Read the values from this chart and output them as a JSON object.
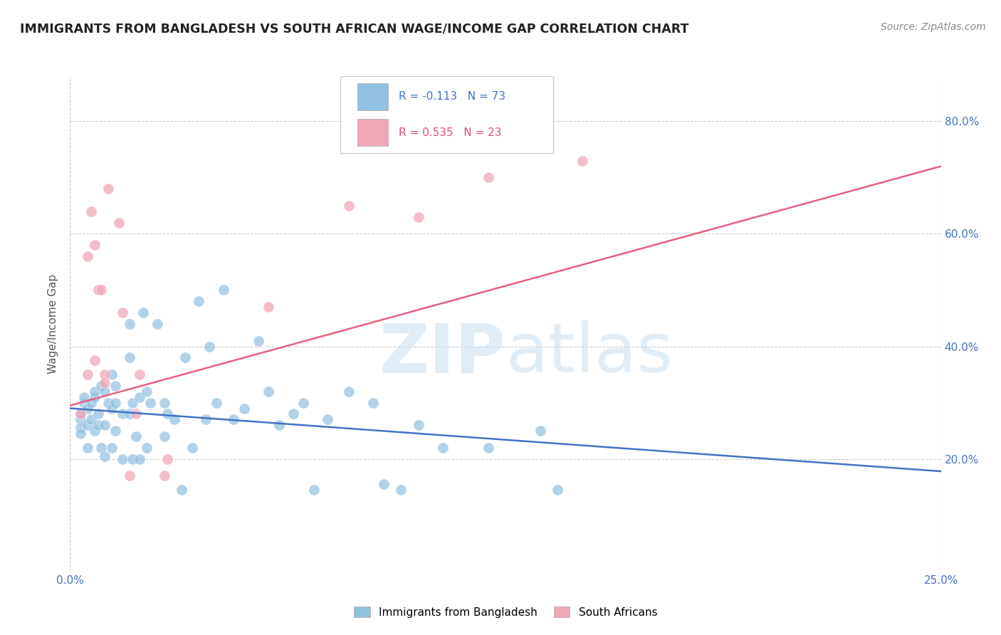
{
  "title": "IMMIGRANTS FROM BANGLADESH VS SOUTH AFRICAN WAGE/INCOME GAP CORRELATION CHART",
  "source": "Source: ZipAtlas.com",
  "ylabel": "Wage/Income Gap",
  "xlim": [
    0.0,
    0.25
  ],
  "ylim": [
    0.0,
    0.88
  ],
  "xtick_labels": [
    "0.0%",
    "25.0%"
  ],
  "xtick_vals": [
    0.0,
    0.25
  ],
  "ytick_vals": [
    0.2,
    0.4,
    0.6,
    0.8
  ],
  "ytick_labels": [
    "20.0%",
    "40.0%",
    "60.0%",
    "80.0%"
  ],
  "legend_label1": "Immigrants from Bangladesh",
  "legend_label2": "South Africans",
  "R1": -0.113,
  "N1": 73,
  "R2": 0.535,
  "N2": 23,
  "color_blue": "#92c0e0",
  "color_pink": "#f0a8b8",
  "color_blue_line": "#4472c4",
  "color_pink_line": "#e86080",
  "color_blue_text": "#4472c4",
  "color_pink_text": "#e05070",
  "background": "#ffffff",
  "grid_color": "#cccccc",
  "scatter_blue": [
    [
      0.003,
      0.27
    ],
    [
      0.003,
      0.255
    ],
    [
      0.003,
      0.28
    ],
    [
      0.003,
      0.245
    ],
    [
      0.004,
      0.3
    ],
    [
      0.004,
      0.31
    ],
    [
      0.005,
      0.26
    ],
    [
      0.005,
      0.29
    ],
    [
      0.005,
      0.22
    ],
    [
      0.006,
      0.3
    ],
    [
      0.006,
      0.27
    ],
    [
      0.007,
      0.31
    ],
    [
      0.007,
      0.32
    ],
    [
      0.007,
      0.25
    ],
    [
      0.008,
      0.26
    ],
    [
      0.008,
      0.28
    ],
    [
      0.009,
      0.33
    ],
    [
      0.009,
      0.22
    ],
    [
      0.01,
      0.205
    ],
    [
      0.01,
      0.32
    ],
    [
      0.01,
      0.26
    ],
    [
      0.011,
      0.3
    ],
    [
      0.012,
      0.35
    ],
    [
      0.012,
      0.29
    ],
    [
      0.012,
      0.22
    ],
    [
      0.013,
      0.3
    ],
    [
      0.013,
      0.33
    ],
    [
      0.013,
      0.25
    ],
    [
      0.015,
      0.28
    ],
    [
      0.015,
      0.2
    ],
    [
      0.017,
      0.44
    ],
    [
      0.017,
      0.38
    ],
    [
      0.017,
      0.28
    ],
    [
      0.018,
      0.3
    ],
    [
      0.018,
      0.2
    ],
    [
      0.019,
      0.24
    ],
    [
      0.02,
      0.31
    ],
    [
      0.02,
      0.2
    ],
    [
      0.021,
      0.46
    ],
    [
      0.022,
      0.32
    ],
    [
      0.022,
      0.22
    ],
    [
      0.023,
      0.3
    ],
    [
      0.025,
      0.44
    ],
    [
      0.027,
      0.3
    ],
    [
      0.027,
      0.24
    ],
    [
      0.028,
      0.28
    ],
    [
      0.03,
      0.27
    ],
    [
      0.032,
      0.145
    ],
    [
      0.033,
      0.38
    ],
    [
      0.035,
      0.22
    ],
    [
      0.037,
      0.48
    ],
    [
      0.039,
      0.27
    ],
    [
      0.04,
      0.4
    ],
    [
      0.042,
      0.3
    ],
    [
      0.044,
      0.5
    ],
    [
      0.047,
      0.27
    ],
    [
      0.05,
      0.29
    ],
    [
      0.054,
      0.41
    ],
    [
      0.057,
      0.32
    ],
    [
      0.06,
      0.26
    ],
    [
      0.064,
      0.28
    ],
    [
      0.067,
      0.3
    ],
    [
      0.07,
      0.145
    ],
    [
      0.074,
      0.27
    ],
    [
      0.08,
      0.32
    ],
    [
      0.087,
      0.3
    ],
    [
      0.09,
      0.155
    ],
    [
      0.095,
      0.145
    ],
    [
      0.1,
      0.26
    ],
    [
      0.107,
      0.22
    ],
    [
      0.12,
      0.22
    ],
    [
      0.135,
      0.25
    ],
    [
      0.14,
      0.145
    ]
  ],
  "scatter_pink": [
    [
      0.003,
      0.28
    ],
    [
      0.005,
      0.35
    ],
    [
      0.005,
      0.56
    ],
    [
      0.006,
      0.64
    ],
    [
      0.007,
      0.58
    ],
    [
      0.007,
      0.375
    ],
    [
      0.008,
      0.5
    ],
    [
      0.009,
      0.5
    ],
    [
      0.01,
      0.35
    ],
    [
      0.01,
      0.335
    ],
    [
      0.011,
      0.68
    ],
    [
      0.014,
      0.62
    ],
    [
      0.015,
      0.46
    ],
    [
      0.017,
      0.17
    ],
    [
      0.019,
      0.28
    ],
    [
      0.02,
      0.35
    ],
    [
      0.027,
      0.17
    ],
    [
      0.028,
      0.2
    ],
    [
      0.057,
      0.47
    ],
    [
      0.08,
      0.65
    ],
    [
      0.1,
      0.63
    ],
    [
      0.12,
      0.7
    ],
    [
      0.147,
      0.73
    ]
  ],
  "trendline_blue": [
    0.0,
    0.25,
    0.29,
    0.178
  ],
  "trendline_pink": [
    0.0,
    0.25,
    0.295,
    0.72
  ]
}
